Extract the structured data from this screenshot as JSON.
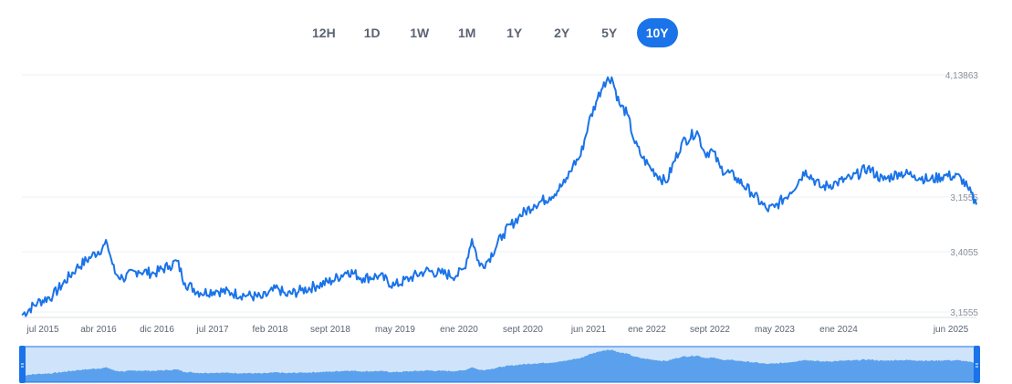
{
  "range_buttons": [
    {
      "label": "12H",
      "active": false
    },
    {
      "label": "1D",
      "active": false
    },
    {
      "label": "1W",
      "active": false
    },
    {
      "label": "1M",
      "active": false
    },
    {
      "label": "1Y",
      "active": false
    },
    {
      "label": "2Y",
      "active": false
    },
    {
      "label": "5Y",
      "active": false
    },
    {
      "label": "10Y",
      "active": true
    }
  ],
  "colors": {
    "line": "#1a73e8",
    "navigator_fill": "#5aa0ec",
    "navigator_bg": "#cfe3fa",
    "handle": "#1a73e8",
    "grid": "#eef0f3"
  },
  "chart_data": {
    "type": "line",
    "title": "",
    "xlabel": "",
    "ylabel": "",
    "grid": true,
    "y_tick_labels": [
      "4,13863",
      "3,1555",
      "3,4055",
      "3,1555"
    ],
    "x_tick_labels": [
      "jul 2015",
      "abr 2016",
      "dic 2016",
      "jul 2017",
      "feb 2018",
      "sept 2018",
      "may 2019",
      "ene 2020",
      "sept 2020",
      "jun 2021",
      "ene 2022",
      "sept 2022",
      "may 2023",
      "ene 2024",
      "jun 2025"
    ],
    "ylim": [
      3.15,
      4.14
    ],
    "x_start": "2015-04",
    "x_end": "2025-07",
    "series": [
      {
        "x": [
          "2015-04",
          "2015-06",
          "2015-08",
          "2015-11",
          "2016-01",
          "2016-03",
          "2016-04",
          "2016-05",
          "2016-07",
          "2016-09",
          "2016-11",
          "2016-12",
          "2017-01",
          "2017-03",
          "2017-05",
          "2017-07",
          "2017-09",
          "2017-11",
          "2018-01",
          "2018-02",
          "2018-04",
          "2018-06",
          "2018-08",
          "2018-10",
          "2018-12",
          "2019-02",
          "2019-04",
          "2019-06",
          "2019-08",
          "2019-10",
          "2019-12",
          "2020-01",
          "2020-02",
          "2020-03",
          "2020-04",
          "2020-06",
          "2020-08",
          "2020-10",
          "2020-12",
          "2021-02",
          "2021-03",
          "2021-04",
          "2021-05",
          "2021-06",
          "2021-07",
          "2021-08",
          "2021-09",
          "2021-10",
          "2021-11",
          "2021-12",
          "2022-01",
          "2022-03",
          "2022-05",
          "2022-07",
          "2022-08",
          "2022-09",
          "2022-10",
          "2022-12",
          "2023-02",
          "2023-04",
          "2023-05",
          "2023-07",
          "2023-09",
          "2023-11",
          "2024-01",
          "2024-03",
          "2024-05",
          "2024-07",
          "2024-09",
          "2024-11",
          "2025-01",
          "2025-03",
          "2025-05",
          "2025-06",
          "2025-07"
        ],
        "y": [
          3.16,
          3.21,
          3.24,
          3.35,
          3.4,
          3.45,
          3.33,
          3.31,
          3.34,
          3.33,
          3.36,
          3.38,
          3.29,
          3.25,
          3.26,
          3.25,
          3.24,
          3.23,
          3.27,
          3.24,
          3.26,
          3.28,
          3.3,
          3.34,
          3.31,
          3.32,
          3.28,
          3.31,
          3.34,
          3.33,
          3.32,
          3.35,
          3.47,
          3.36,
          3.38,
          3.49,
          3.56,
          3.61,
          3.64,
          3.7,
          3.77,
          3.81,
          3.94,
          4.03,
          4.11,
          4.13,
          4.02,
          3.98,
          3.86,
          3.8,
          3.76,
          3.7,
          3.86,
          3.91,
          3.82,
          3.83,
          3.76,
          3.72,
          3.66,
          3.59,
          3.6,
          3.66,
          3.75,
          3.68,
          3.7,
          3.72,
          3.76,
          3.71,
          3.74,
          3.73,
          3.71,
          3.73,
          3.72,
          3.67,
          3.61
        ]
      }
    ]
  }
}
